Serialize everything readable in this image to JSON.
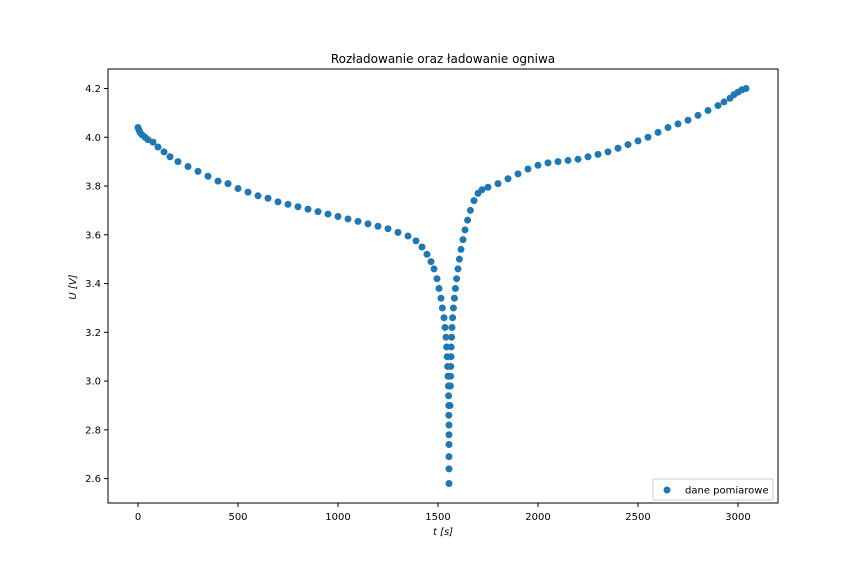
{
  "chart_data": {
    "type": "scatter",
    "title": "Rozładowanie oraz ładowanie ogniwa",
    "xlabel": "t [s]",
    "ylabel": "U [V]",
    "xlim": [
      -150,
      3200
    ],
    "ylim": [
      2.5,
      4.28
    ],
    "xticks": [
      0,
      500,
      1000,
      1500,
      2000,
      2500,
      3000
    ],
    "xtick_labels": [
      "0",
      "500",
      "1000",
      "1500",
      "2000",
      "2500",
      "3000"
    ],
    "yticks": [
      2.6,
      2.8,
      3.0,
      3.2,
      3.4,
      3.6,
      3.8,
      4.0,
      4.2
    ],
    "ytick_labels": [
      "2.6",
      "2.8",
      "3.0",
      "3.2",
      "3.4",
      "3.6",
      "3.8",
      "4.0",
      "4.2"
    ],
    "grid": false,
    "legend_position": "lower right",
    "series": [
      {
        "name": "dane pomiarowe",
        "color": "#1f77b4",
        "points": [
          [
            0,
            4.04
          ],
          [
            5,
            4.03
          ],
          [
            10,
            4.02
          ],
          [
            20,
            4.01
          ],
          [
            35,
            4.0
          ],
          [
            50,
            3.99
          ],
          [
            75,
            3.98
          ],
          [
            100,
            3.96
          ],
          [
            130,
            3.94
          ],
          [
            160,
            3.92
          ],
          [
            200,
            3.9
          ],
          [
            250,
            3.88
          ],
          [
            300,
            3.86
          ],
          [
            350,
            3.84
          ],
          [
            400,
            3.82
          ],
          [
            450,
            3.81
          ],
          [
            500,
            3.79
          ],
          [
            550,
            3.775
          ],
          [
            600,
            3.76
          ],
          [
            650,
            3.75
          ],
          [
            700,
            3.735
          ],
          [
            750,
            3.725
          ],
          [
            800,
            3.715
          ],
          [
            850,
            3.705
          ],
          [
            900,
            3.695
          ],
          [
            950,
            3.685
          ],
          [
            1000,
            3.675
          ],
          [
            1050,
            3.665
          ],
          [
            1100,
            3.655
          ],
          [
            1150,
            3.645
          ],
          [
            1200,
            3.635
          ],
          [
            1250,
            3.625
          ],
          [
            1300,
            3.61
          ],
          [
            1350,
            3.595
          ],
          [
            1390,
            3.575
          ],
          [
            1420,
            3.55
          ],
          [
            1445,
            3.52
          ],
          [
            1465,
            3.49
          ],
          [
            1480,
            3.46
          ],
          [
            1495,
            3.42
          ],
          [
            1505,
            3.38
          ],
          [
            1515,
            3.34
          ],
          [
            1522,
            3.3
          ],
          [
            1530,
            3.26
          ],
          [
            1535,
            3.22
          ],
          [
            1540,
            3.18
          ],
          [
            1543,
            3.14
          ],
          [
            1546,
            3.1
          ],
          [
            1548,
            3.06
          ],
          [
            1550,
            3.02
          ],
          [
            1552,
            2.98
          ],
          [
            1553,
            2.94
          ],
          [
            1554,
            2.9
          ],
          [
            1554,
            2.86
          ],
          [
            1555,
            2.82
          ],
          [
            1555,
            2.78
          ],
          [
            1555,
            2.74
          ],
          [
            1555,
            2.69
          ],
          [
            1555,
            2.64
          ],
          [
            1555,
            2.58
          ],
          [
            1560,
            2.9
          ],
          [
            1562,
            2.98
          ],
          [
            1563,
            3.02
          ],
          [
            1564,
            3.06
          ],
          [
            1565,
            3.1
          ],
          [
            1566,
            3.14
          ],
          [
            1568,
            3.18
          ],
          [
            1570,
            3.22
          ],
          [
            1573,
            3.26
          ],
          [
            1577,
            3.3
          ],
          [
            1582,
            3.34
          ],
          [
            1587,
            3.38
          ],
          [
            1593,
            3.42
          ],
          [
            1600,
            3.46
          ],
          [
            1607,
            3.5
          ],
          [
            1615,
            3.54
          ],
          [
            1625,
            3.58
          ],
          [
            1635,
            3.62
          ],
          [
            1648,
            3.66
          ],
          [
            1662,
            3.7
          ],
          [
            1680,
            3.74
          ],
          [
            1700,
            3.77
          ],
          [
            1720,
            3.785
          ],
          [
            1750,
            3.795
          ],
          [
            1800,
            3.81
          ],
          [
            1850,
            3.83
          ],
          [
            1900,
            3.85
          ],
          [
            1950,
            3.87
          ],
          [
            2000,
            3.885
          ],
          [
            2050,
            3.895
          ],
          [
            2100,
            3.9
          ],
          [
            2150,
            3.905
          ],
          [
            2200,
            3.91
          ],
          [
            2250,
            3.92
          ],
          [
            2300,
            3.93
          ],
          [
            2350,
            3.94
          ],
          [
            2400,
            3.955
          ],
          [
            2450,
            3.97
          ],
          [
            2500,
            3.985
          ],
          [
            2550,
            4.0
          ],
          [
            2600,
            4.02
          ],
          [
            2650,
            4.04
          ],
          [
            2700,
            4.055
          ],
          [
            2750,
            4.07
          ],
          [
            2800,
            4.09
          ],
          [
            2850,
            4.11
          ],
          [
            2900,
            4.13
          ],
          [
            2930,
            4.145
          ],
          [
            2960,
            4.16
          ],
          [
            2980,
            4.175
          ],
          [
            3000,
            4.185
          ],
          [
            3020,
            4.195
          ],
          [
            3040,
            4.2
          ]
        ]
      }
    ]
  }
}
